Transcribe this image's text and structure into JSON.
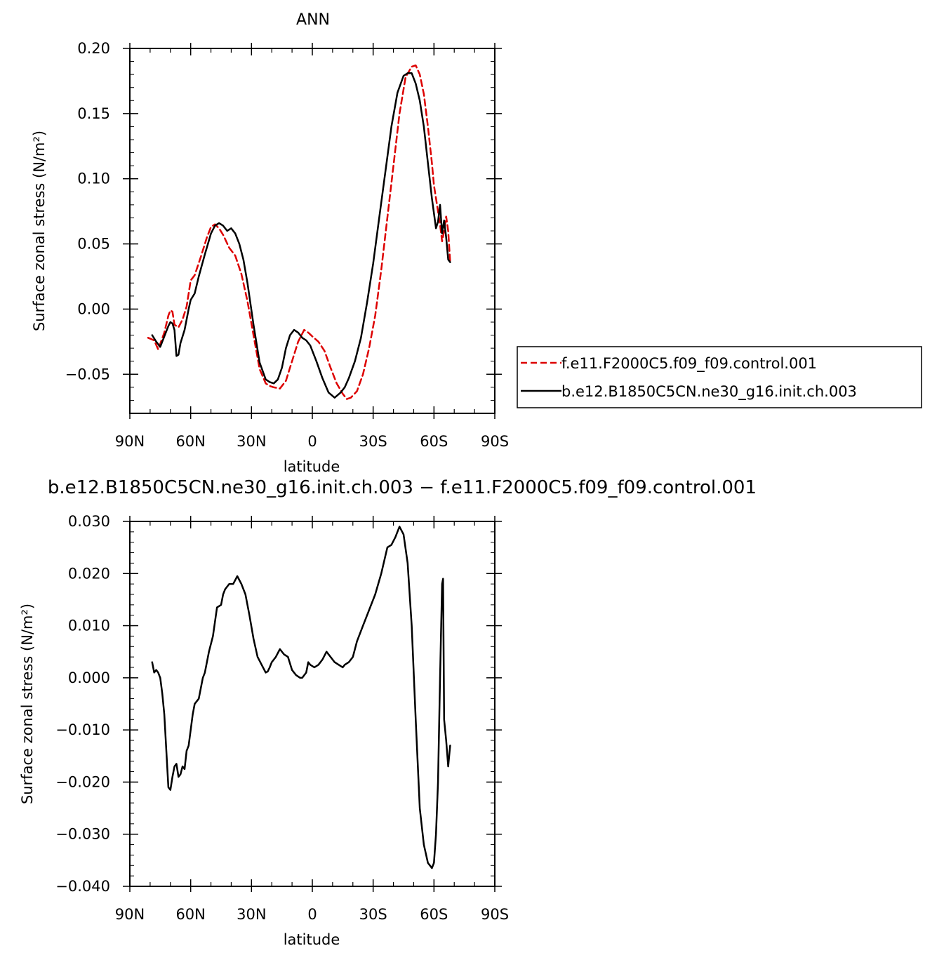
{
  "chart_data": [
    {
      "type": "line",
      "title": "ANN",
      "xlabel": "latitude",
      "ylabel": "Surface zonal stress (N/m²)",
      "xlim": [
        90,
        -90
      ],
      "ylim": [
        -0.08,
        0.2
      ],
      "xticks": [
        {
          "value": 90,
          "label": "90N"
        },
        {
          "value": 60,
          "label": "60N"
        },
        {
          "value": 30,
          "label": "30N"
        },
        {
          "value": 0,
          "label": "0"
        },
        {
          "value": -30,
          "label": "30S"
        },
        {
          "value": -60,
          "label": "60S"
        },
        {
          "value": -90,
          "label": "90S"
        }
      ],
      "yticks": [
        {
          "value": 0.2,
          "label": "0.20"
        },
        {
          "value": 0.15,
          "label": "0.15"
        },
        {
          "value": 0.1,
          "label": "0.10"
        },
        {
          "value": 0.05,
          "label": "0.05"
        },
        {
          "value": 0.0,
          "label": "0.00"
        },
        {
          "value": -0.05,
          "label": "−0.05"
        }
      ],
      "legend": {
        "position": "right"
      },
      "series": [
        {
          "name": "f.e11.F2000C5.f09_f09.control.001",
          "color": "#dd0000",
          "dash": true,
          "x": [
            81,
            78,
            76,
            73,
            71,
            70,
            69,
            68,
            66,
            64,
            62,
            60,
            58,
            55,
            52,
            50,
            48,
            46,
            44,
            41,
            38,
            35,
            32,
            29,
            26,
            23,
            21,
            19,
            16,
            13,
            10,
            7,
            4,
            2,
            0,
            -3,
            -6,
            -9,
            -12,
            -15,
            -17,
            -19,
            -22,
            -25,
            -28,
            -31,
            -34,
            -37,
            -40,
            -43,
            -46,
            -49,
            -51,
            -53,
            -55,
            -57,
            -59,
            -60,
            -62,
            -63,
            -64,
            -65,
            -66,
            -67,
            -68
          ],
          "y": [
            -0.022,
            -0.024,
            -0.031,
            -0.018,
            -0.005,
            -0.001,
            -0.002,
            -0.012,
            -0.014,
            -0.008,
            0.002,
            0.022,
            0.026,
            0.04,
            0.055,
            0.063,
            0.065,
            0.062,
            0.057,
            0.047,
            0.041,
            0.027,
            0.006,
            -0.02,
            -0.046,
            -0.057,
            -0.059,
            -0.06,
            -0.061,
            -0.055,
            -0.04,
            -0.025,
            -0.016,
            -0.018,
            -0.021,
            -0.025,
            -0.032,
            -0.045,
            -0.057,
            -0.065,
            -0.069,
            -0.068,
            -0.063,
            -0.05,
            -0.03,
            -0.005,
            0.03,
            0.07,
            0.11,
            0.15,
            0.178,
            0.186,
            0.187,
            0.18,
            0.165,
            0.14,
            0.112,
            0.095,
            0.075,
            0.065,
            0.052,
            0.06,
            0.071,
            0.06,
            0.036
          ]
        },
        {
          "name": "b.e12.B1850C5CN.ne30_g16.init.ch.003",
          "color": "#000000",
          "dash": false,
          "x": [
            79,
            77,
            75,
            73,
            71,
            70,
            69,
            68,
            67,
            66,
            65,
            63,
            61,
            60,
            58,
            56,
            53,
            50,
            48,
            46,
            44,
            42,
            40,
            38,
            36,
            34,
            32,
            29,
            26,
            23,
            21,
            19,
            17,
            15,
            13,
            11,
            9,
            7,
            5,
            3,
            1,
            -2,
            -5,
            -8,
            -11,
            -14,
            -16,
            -18,
            -21,
            -24,
            -27,
            -30,
            -33,
            -36,
            -39,
            -42,
            -45,
            -47,
            -49,
            -51,
            -53,
            -55,
            -57,
            -59,
            -61,
            -62,
            -63,
            -64,
            -65,
            -66,
            -67,
            -68
          ],
          "y": [
            -0.02,
            -0.025,
            -0.029,
            -0.021,
            -0.013,
            -0.01,
            -0.011,
            -0.016,
            -0.036,
            -0.035,
            -0.026,
            -0.016,
            0.0,
            0.007,
            0.012,
            0.025,
            0.042,
            0.058,
            0.064,
            0.066,
            0.064,
            0.06,
            0.062,
            0.058,
            0.05,
            0.038,
            0.02,
            -0.012,
            -0.041,
            -0.054,
            -0.056,
            -0.057,
            -0.054,
            -0.045,
            -0.03,
            -0.02,
            -0.016,
            -0.018,
            -0.022,
            -0.024,
            -0.028,
            -0.04,
            -0.053,
            -0.064,
            -0.068,
            -0.064,
            -0.06,
            -0.053,
            -0.04,
            -0.022,
            0.005,
            0.035,
            0.07,
            0.105,
            0.14,
            0.166,
            0.179,
            0.181,
            0.181,
            0.173,
            0.16,
            0.14,
            0.112,
            0.085,
            0.062,
            0.067,
            0.08,
            0.058,
            0.068,
            0.055,
            0.038,
            0.036
          ]
        }
      ]
    },
    {
      "type": "line",
      "title": "b.e12.B1850C5CN.ne30_g16.init.ch.003 − f.e11.F2000C5.f09_f09.control.001",
      "xlabel": "latitude",
      "ylabel": "Surface zonal stress (N/m²)",
      "xlim": [
        90,
        -90
      ],
      "ylim": [
        -0.04,
        0.03
      ],
      "xticks": [
        {
          "value": 90,
          "label": "90N"
        },
        {
          "value": 60,
          "label": "60N"
        },
        {
          "value": 30,
          "label": "30N"
        },
        {
          "value": 0,
          "label": "0"
        },
        {
          "value": -30,
          "label": "30S"
        },
        {
          "value": -60,
          "label": "60S"
        },
        {
          "value": -90,
          "label": "90S"
        }
      ],
      "yticks": [
        {
          "value": 0.03,
          "label": "0.030"
        },
        {
          "value": 0.02,
          "label": "0.020"
        },
        {
          "value": 0.01,
          "label": "0.010"
        },
        {
          "value": 0.0,
          "label": "0.000"
        },
        {
          "value": -0.01,
          "label": "−0.010"
        },
        {
          "value": -0.02,
          "label": "−0.020"
        },
        {
          "value": -0.03,
          "label": "−0.030"
        },
        {
          "value": -0.04,
          "label": "−0.040"
        }
      ],
      "series": [
        {
          "color": "#000000",
          "dash": false,
          "x": [
            79,
            78,
            77,
            76,
            75,
            74,
            73,
            72,
            71,
            70,
            69,
            68,
            67,
            66,
            65,
            64,
            63,
            62,
            61,
            60,
            59,
            58,
            57,
            56,
            55,
            54,
            53,
            51,
            49,
            47,
            45,
            44,
            43,
            41,
            39,
            37,
            35,
            33,
            31,
            29,
            27,
            25,
            23,
            22,
            21,
            20,
            18,
            16,
            14,
            12,
            10,
            8,
            6,
            5,
            3,
            2,
            1,
            -1,
            -3,
            -5,
            -7,
            -9,
            -11,
            -13,
            -15,
            -16,
            -18,
            -20,
            -22,
            -25,
            -28,
            -31,
            -34,
            -37,
            -39,
            -41,
            -43,
            -45,
            -47,
            -49,
            -51,
            -53,
            -55,
            -57,
            -58,
            -59,
            -60,
            -61,
            -62,
            -63,
            -64,
            -64.5,
            -65,
            -66,
            -67,
            -68
          ],
          "y": [
            0.003,
            0.001,
            0.0015,
            0.001,
            0.0,
            -0.003,
            -0.007,
            -0.014,
            -0.021,
            -0.0215,
            -0.019,
            -0.017,
            -0.0165,
            -0.019,
            -0.0185,
            -0.017,
            -0.0175,
            -0.014,
            -0.013,
            -0.01,
            -0.007,
            -0.005,
            -0.0045,
            -0.004,
            -0.002,
            0.0,
            0.001,
            0.005,
            0.008,
            0.0135,
            0.014,
            0.016,
            0.017,
            0.018,
            0.018,
            0.0195,
            0.018,
            0.016,
            0.012,
            0.0075,
            0.004,
            0.0025,
            0.001,
            0.0012,
            0.002,
            0.003,
            0.004,
            0.0055,
            0.0045,
            0.004,
            0.0015,
            0.0005,
            0.0,
            0.0,
            0.001,
            0.003,
            0.0025,
            0.002,
            0.0025,
            0.0035,
            0.005,
            0.004,
            0.003,
            0.0025,
            0.002,
            0.0025,
            0.003,
            0.004,
            0.007,
            0.01,
            0.013,
            0.016,
            0.02,
            0.025,
            0.0255,
            0.027,
            0.029,
            0.0275,
            0.022,
            0.01,
            -0.008,
            -0.025,
            -0.032,
            -0.0355,
            -0.036,
            -0.0365,
            -0.0355,
            -0.03,
            -0.02,
            0.0,
            0.018,
            0.019,
            -0.008,
            -0.012,
            -0.017,
            -0.013
          ]
        }
      ]
    }
  ]
}
